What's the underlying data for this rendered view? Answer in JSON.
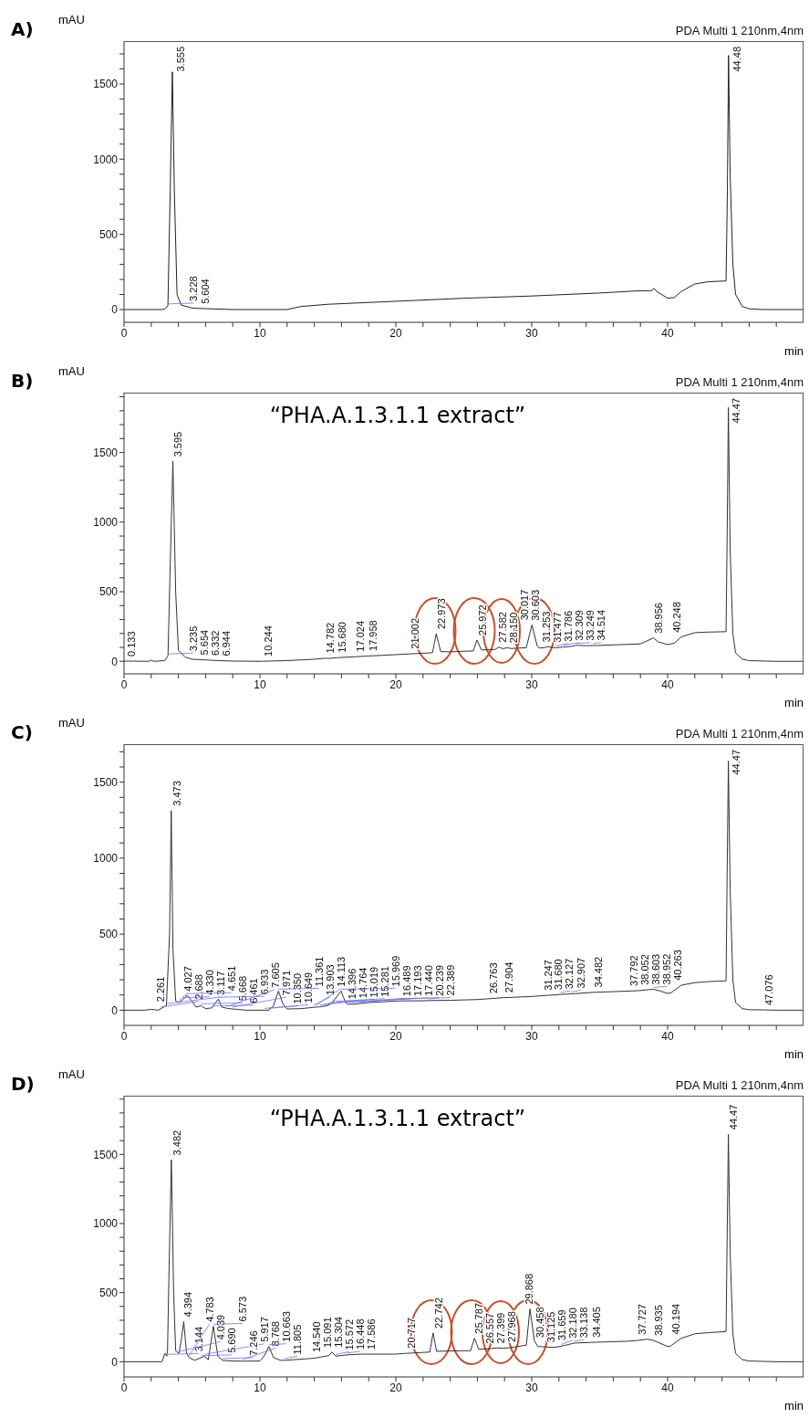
{
  "chart_data": [
    {
      "type": "line",
      "title": "A)",
      "xlabel": "min",
      "ylabel": "mAU",
      "xlim": [
        0,
        50
      ],
      "ylim": [
        -85,
        1785
      ],
      "xticks": [
        0,
        {
          "value": 2,
          "label": null
        },
        {
          "value": 4,
          "label": null
        },
        {
          "value": 6,
          "label": null
        },
        {
          "value": 8,
          "label": null
        },
        10,
        {
          "value": 12,
          "label": null
        },
        {
          "value": 14,
          "label": null
        },
        {
          "value": 16,
          "label": null
        },
        {
          "value": 18,
          "label": null
        },
        20,
        {
          "value": 22,
          "label": null
        },
        {
          "value": 24,
          "label": null
        },
        {
          "value": 26,
          "label": null
        },
        {
          "value": 28,
          "label": null
        },
        30,
        {
          "value": 32,
          "label": null
        },
        {
          "value": 34,
          "label": null
        },
        {
          "value": 36,
          "label": null
        },
        {
          "value": 38,
          "label": null
        },
        40,
        {
          "value": 42,
          "label": null
        },
        {
          "value": 44,
          "label": null
        },
        {
          "value": 46,
          "label": null
        },
        {
          "value": 48,
          "label": null
        }
      ],
      "yticks": [
        0,
        {
          "value": 100,
          "label": null
        },
        {
          "value": 200,
          "label": null
        },
        {
          "value": 300,
          "label": null
        },
        {
          "value": 400,
          "label": null
        },
        500,
        {
          "value": 600,
          "label": null
        },
        {
          "value": 700,
          "label": null
        },
        {
          "value": 800,
          "label": null
        },
        {
          "value": 900,
          "label": null
        },
        1000,
        {
          "value": 1100,
          "label": null
        },
        {
          "value": 1200,
          "label": null
        },
        {
          "value": 1300,
          "label": null
        },
        {
          "value": 1400,
          "label": null
        },
        1500,
        {
          "value": 1600,
          "label": null
        },
        {
          "value": 1700,
          "label": null
        }
      ],
      "x": [
        0,
        2.8,
        3.0,
        3.228,
        3.4,
        3.555,
        3.7,
        3.9,
        4.2,
        5,
        5.604,
        8,
        12,
        13,
        15,
        20,
        25,
        30,
        35,
        38,
        38.8,
        39,
        39.2,
        40,
        40.5,
        41,
        42,
        43,
        44.3,
        44.4,
        44.48,
        44.6,
        44.8,
        45,
        45.5,
        46,
        47,
        50
      ],
      "series": [
        {
          "color": "#222222",
          "values": [
            0,
            0,
            5,
            25,
            800,
            1580,
            800,
            100,
            30,
            10,
            7,
            0,
            0,
            20,
            35,
            55,
            75,
            90,
            110,
            125,
            125,
            140,
            120,
            75,
            80,
            120,
            170,
            185,
            190,
            800,
            1690,
            900,
            300,
            100,
            20,
            5,
            0,
            0
          ]
        }
      ],
      "annotations": [
        "PDA Multi 1 210nm,4nm",
        {
          "text": "3.228",
          "x": 3.228,
          "y": 25
        },
        {
          "text": "3.555",
          "x": 3.555,
          "y": 1580
        },
        {
          "text": "5.604",
          "x": 5.604,
          "y": 7
        },
        {
          "text": "44.48",
          "x": 44.48,
          "y": 1690
        }
      ]
    },
    {
      "type": "line",
      "title": "B)",
      "subtitle": "“PHA.A.1.3.1.1 extract”",
      "xlabel": "min",
      "ylabel": "mAU",
      "xlim": [
        0,
        50
      ],
      "ylim": [
        -90,
        1930
      ],
      "xticks": [
        0,
        {
          "value": 2,
          "label": null
        },
        {
          "value": 4,
          "label": null
        },
        {
          "value": 6,
          "label": null
        },
        {
          "value": 8,
          "label": null
        },
        10,
        {
          "value": 12,
          "label": null
        },
        {
          "value": 14,
          "label": null
        },
        {
          "value": 16,
          "label": null
        },
        {
          "value": 18,
          "label": null
        },
        20,
        {
          "value": 22,
          "label": null
        },
        {
          "value": 24,
          "label": null
        },
        {
          "value": 26,
          "label": null
        },
        {
          "value": 28,
          "label": null
        },
        30,
        {
          "value": 32,
          "label": null
        },
        {
          "value": 34,
          "label": null
        },
        {
          "value": 36,
          "label": null
        },
        {
          "value": 38,
          "label": null
        },
        40,
        {
          "value": 42,
          "label": null
        },
        {
          "value": 44,
          "label": null
        },
        {
          "value": 46,
          "label": null
        },
        {
          "value": 48,
          "label": null
        }
      ],
      "yticks": [
        0,
        {
          "value": 100,
          "label": null
        },
        {
          "value": 200,
          "label": null
        },
        {
          "value": 300,
          "label": null
        },
        {
          "value": 400,
          "label": null
        },
        500,
        {
          "value": 600,
          "label": null
        },
        {
          "value": 700,
          "label": null
        },
        {
          "value": 800,
          "label": null
        },
        {
          "value": 900,
          "label": null
        },
        1000,
        {
          "value": 1100,
          "label": null
        },
        {
          "value": 1200,
          "label": null
        },
        {
          "value": 1300,
          "label": null
        },
        {
          "value": 1400,
          "label": null
        },
        1500,
        {
          "value": 1600,
          "label": null
        },
        {
          "value": 1700,
          "label": null
        },
        {
          "value": 1800,
          "label": null
        },
        {
          "value": 1900,
          "label": null
        }
      ],
      "x": [
        0,
        0.133,
        1.8,
        2.0,
        2.2,
        3.0,
        3.235,
        3.4,
        3.595,
        3.8,
        4.0,
        4.5,
        5,
        5.654,
        6.332,
        6.944,
        8,
        10,
        10.244,
        12,
        14,
        14.782,
        15,
        15.68,
        17.024,
        17.958,
        20,
        21.002,
        22,
        22.7,
        22.973,
        23.3,
        24,
        25.7,
        25.972,
        26.3,
        27.3,
        27.582,
        27.9,
        28.15,
        28.5,
        29.6,
        30.017,
        30.4,
        30.603,
        31,
        31.253,
        31.477,
        31.786,
        32.309,
        33,
        33.249,
        34,
        34.514,
        36,
        38,
        38.956,
        39.3,
        40,
        40.248,
        40.5,
        41,
        42,
        43,
        44.3,
        44.38,
        44.47,
        44.6,
        44.8,
        45,
        45.5,
        46,
        48,
        50
      ],
      "series": [
        {
          "color": "#333333",
          "values": [
            0,
            2,
            0,
            8,
            0,
            5,
            40,
            700,
            1436,
            500,
            80,
            30,
            15,
            12,
            8,
            5,
            2,
            0,
            1,
            5,
            15,
            22,
            20,
            26,
            33,
            38,
            48,
            53,
            58,
            62,
            198,
            70,
            68,
            75,
            153,
            82,
            85,
            102,
            90,
            98,
            92,
            98,
            262,
            110,
            95,
            100,
            105,
            100,
            98,
            102,
            108,
            115,
            112,
            113,
            118,
            125,
            168,
            140,
            120,
            125,
            130,
            175,
            206,
            210,
            213,
            900,
            1822,
            800,
            200,
            60,
            15,
            5,
            0,
            0
          ]
        }
      ],
      "annotations": [
        "PDA Multi 1 210nm,4nm",
        {
          "text": "0.133",
          "x": 0.133,
          "y": 2
        },
        {
          "text": "3.235",
          "x": 3.235,
          "y": 40
        },
        {
          "text": "3.595",
          "x": 3.595,
          "y": 1436
        },
        {
          "text": "5.654",
          "x": 5.654,
          "y": 12
        },
        {
          "text": "6.332",
          "x": 6.332,
          "y": 8
        },
        {
          "text": "6.944",
          "x": 6.944,
          "y": 5
        },
        {
          "text": "10.244",
          "x": 10.244,
          "y": 1
        },
        {
          "text": "14.782",
          "x": 14.782,
          "y": 22
        },
        {
          "text": "15.680",
          "x": 15.68,
          "y": 26
        },
        {
          "text": "17.024",
          "x": 17.024,
          "y": 33
        },
        {
          "text": "17.958",
          "x": 17.958,
          "y": 38
        },
        {
          "text": "21.002",
          "x": 21.002,
          "y": 53
        },
        {
          "text": "22.973",
          "x": 22.973,
          "y": 198
        },
        {
          "text": "25.972",
          "x": 25.972,
          "y": 153
        },
        {
          "text": "27.582",
          "x": 27.582,
          "y": 102
        },
        {
          "text": "28.150",
          "x": 28.15,
          "y": 98
        },
        {
          "text": "30.017",
          "x": 30.017,
          "y": 262
        },
        {
          "text": "30.603",
          "x": 30.603,
          "y": 95
        },
        {
          "text": "31.253",
          "x": 31.253,
          "y": 105
        },
        {
          "text": "31.477",
          "x": 31.477,
          "y": 100
        },
        {
          "text": "31.786",
          "x": 31.786,
          "y": 98
        },
        {
          "text": "32.309",
          "x": 32.309,
          "y": 102
        },
        {
          "text": "33.249",
          "x": 33.249,
          "y": 115
        },
        {
          "text": "34.514",
          "x": 34.514,
          "y": 113
        },
        {
          "text": "38.956",
          "x": 38.956,
          "y": 168
        },
        {
          "text": "40.248",
          "x": 40.248,
          "y": 125
        },
        {
          "text": "44.47",
          "x": 44.47,
          "y": 1822
        }
      ]
    },
    {
      "type": "line",
      "title": "C)",
      "xlabel": "min",
      "ylabel": "mAU",
      "xlim": [
        0,
        50
      ],
      "ylim": [
        -100,
        1750
      ],
      "xticks": [
        0,
        {
          "value": 2,
          "label": null
        },
        {
          "value": 4,
          "label": null
        },
        {
          "value": 6,
          "label": null
        },
        {
          "value": 8,
          "label": null
        },
        10,
        {
          "value": 12,
          "label": null
        },
        {
          "value": 14,
          "label": null
        },
        {
          "value": 16,
          "label": null
        },
        {
          "value": 18,
          "label": null
        },
        20,
        {
          "value": 22,
          "label": null
        },
        {
          "value": 24,
          "label": null
        },
        {
          "value": 26,
          "label": null
        },
        {
          "value": 28,
          "label": null
        },
        30,
        {
          "value": 32,
          "label": null
        },
        {
          "value": 34,
          "label": null
        },
        {
          "value": 36,
          "label": null
        },
        {
          "value": 38,
          "label": null
        },
        40,
        {
          "value": 42,
          "label": null
        },
        {
          "value": 44,
          "label": null
        },
        {
          "value": 46,
          "label": null
        },
        {
          "value": 48,
          "label": null
        }
      ],
      "yticks": [
        0,
        {
          "value": 100,
          "label": null
        },
        {
          "value": 200,
          "label": null
        },
        {
          "value": 300,
          "label": null
        },
        {
          "value": 400,
          "label": null
        },
        500,
        {
          "value": 600,
          "label": null
        },
        {
          "value": 700,
          "label": null
        },
        {
          "value": 800,
          "label": null
        },
        {
          "value": 900,
          "label": null
        },
        1000,
        {
          "value": 1100,
          "label": null
        },
        {
          "value": 1200,
          "label": null
        },
        {
          "value": 1300,
          "label": null
        },
        {
          "value": 1400,
          "label": null
        },
        1500,
        {
          "value": 1600,
          "label": null
        },
        {
          "value": 1700,
          "label": null
        }
      ],
      "x": [
        0,
        1.5,
        2.0,
        2.261,
        2.5,
        2.688,
        3.0,
        3.117,
        3.35,
        3.473,
        3.6,
        3.8,
        4.027,
        4.33,
        4.651,
        5.0,
        5.3,
        5.668,
        6.0,
        6.461,
        6.933,
        7.2,
        7.605,
        7.971,
        9,
        10,
        10.35,
        10.649,
        11.0,
        11.361,
        11.7,
        12,
        13,
        13.903,
        14.113,
        14.396,
        14.764,
        15.019,
        15.281,
        15.5,
        15.969,
        16.3,
        16.489,
        17.193,
        17.44,
        18,
        20,
        20.239,
        22,
        22.389,
        24,
        26,
        26.763,
        27.904,
        30,
        31.247,
        31.68,
        32.127,
        32.907,
        34.482,
        36,
        37.792,
        38.052,
        38.603,
        38.952,
        39.5,
        40,
        40.263,
        41,
        42,
        43,
        44.3,
        44.38,
        44.47,
        44.6,
        44.8,
        45,
        45.5,
        46,
        47.076,
        48,
        50
      ],
      "series": [
        {
          "color": "#333333",
          "values": [
            0,
            0,
            5,
            3,
            0,
            8,
            25,
            30,
            500,
            1313,
            400,
            60,
            50,
            70,
            97,
            60,
            20,
            30,
            10,
            15,
            73,
            20,
            12,
            8,
            0,
            0,
            0,
            0,
            30,
            126,
            40,
            8,
            10,
            18,
            20,
            22,
            27,
            32,
            45,
            70,
            126,
            50,
            38,
            42,
            45,
            50,
            60,
            61,
            62,
            63,
            65,
            70,
            75,
            82,
            90,
            98,
            100,
            104,
            107,
            117,
            122,
            128,
            130,
            135,
            138,
            125,
            110,
            115,
            164,
            181,
            188,
            193,
            900,
            1638,
            800,
            200,
            50,
            10,
            3,
            2,
            0,
            0
          ]
        }
      ],
      "annotations": [
        "PDA Multi 1 210nm,4nm",
        {
          "text": "2.261",
          "x": 2.261,
          "y": 3
        },
        {
          "text": "2.688",
          "x": 2.688,
          "y": 8
        },
        {
          "text": "3.117",
          "x": 3.117,
          "y": 30
        },
        {
          "text": "3.473",
          "x": 3.473,
          "y": 1313
        },
        {
          "text": "4.027",
          "x": 4.027,
          "y": 50
        },
        {
          "text": "4.330",
          "x": 4.33,
          "y": 70
        },
        {
          "text": "4.651",
          "x": 4.651,
          "y": 97
        },
        {
          "text": "5.668",
          "x": 5.668,
          "y": 30
        },
        {
          "text": "6.461",
          "x": 6.461,
          "y": 15
        },
        {
          "text": "6.933",
          "x": 6.933,
          "y": 73
        },
        {
          "text": "7.605",
          "x": 7.605,
          "y": 12
        },
        {
          "text": "7.971",
          "x": 7.971,
          "y": 8
        },
        {
          "text": "10.350",
          "x": 10.35,
          "y": 0
        },
        {
          "text": "10.649",
          "x": 10.649,
          "y": 0
        },
        {
          "text": "11.361",
          "x": 11.361,
          "y": 126
        },
        {
          "text": "13.903",
          "x": 13.903,
          "y": 18
        },
        {
          "text": "14.113",
          "x": 14.113,
          "y": 20
        },
        {
          "text": "14.396",
          "x": 14.396,
          "y": 22
        },
        {
          "text": "14.764",
          "x": 14.764,
          "y": 27
        },
        {
          "text": "15.019",
          "x": 15.019,
          "y": 32
        },
        {
          "text": "15.281",
          "x": 15.281,
          "y": 45
        },
        {
          "text": "15.969",
          "x": 15.969,
          "y": 126
        },
        {
          "text": "16.489",
          "x": 16.489,
          "y": 38
        },
        {
          "text": "17.193",
          "x": 17.193,
          "y": 42
        },
        {
          "text": "17.440",
          "x": 17.44,
          "y": 45
        },
        {
          "text": "20.239",
          "x": 20.239,
          "y": 61
        },
        {
          "text": "22.389",
          "x": 22.389,
          "y": 63
        },
        {
          "text": "26.763",
          "x": 26.763,
          "y": 75
        },
        {
          "text": "27.904",
          "x": 27.904,
          "y": 82
        },
        {
          "text": "31.247",
          "x": 31.247,
          "y": 98
        },
        {
          "text": "31.680",
          "x": 31.68,
          "y": 100
        },
        {
          "text": "32.127",
          "x": 32.127,
          "y": 104
        },
        {
          "text": "32.907",
          "x": 32.907,
          "y": 107
        },
        {
          "text": "34.482",
          "x": 34.482,
          "y": 117
        },
        {
          "text": "37.792",
          "x": 37.792,
          "y": 128
        },
        {
          "text": "38.052",
          "x": 38.052,
          "y": 130
        },
        {
          "text": "38.603",
          "x": 38.603,
          "y": 135
        },
        {
          "text": "38.952",
          "x": 38.952,
          "y": 138
        },
        {
          "text": "40.263",
          "x": 40.263,
          "y": 115
        },
        {
          "text": "44.47",
          "x": 44.47,
          "y": 1638
        },
        {
          "text": "47.076",
          "x": 47.076,
          "y": 2
        }
      ]
    },
    {
      "type": "line",
      "title": "D)",
      "subtitle": "“PHA.A.1.3.1.1 extract”",
      "xlabel": "min",
      "ylabel": "mAU",
      "xlim": [
        0,
        50
      ],
      "ylim": [
        -110,
        1925
      ],
      "xticks": [
        0,
        {
          "value": 2,
          "label": null
        },
        {
          "value": 4,
          "label": null
        },
        {
          "value": 6,
          "label": null
        },
        {
          "value": 8,
          "label": null
        },
        10,
        {
          "value": 12,
          "label": null
        },
        {
          "value": 14,
          "label": null
        },
        {
          "value": 16,
          "label": null
        },
        {
          "value": 18,
          "label": null
        },
        20,
        {
          "value": 22,
          "label": null
        },
        {
          "value": 24,
          "label": null
        },
        {
          "value": 26,
          "label": null
        },
        {
          "value": 28,
          "label": null
        },
        30,
        {
          "value": 32,
          "label": null
        },
        {
          "value": 34,
          "label": null
        },
        {
          "value": 36,
          "label": null
        },
        {
          "value": 38,
          "label": null
        },
        40,
        {
          "value": 42,
          "label": null
        },
        {
          "value": 44,
          "label": null
        },
        {
          "value": 46,
          "label": null
        },
        {
          "value": 48,
          "label": null
        }
      ],
      "yticks": [
        0,
        {
          "value": 100,
          "label": null
        },
        {
          "value": 200,
          "label": null
        },
        {
          "value": 300,
          "label": null
        },
        {
          "value": 400,
          "label": null
        },
        500,
        {
          "value": 600,
          "label": null
        },
        {
          "value": 700,
          "label": null
        },
        {
          "value": 800,
          "label": null
        },
        {
          "value": 900,
          "label": null
        },
        1000,
        {
          "value": 1100,
          "label": null
        },
        {
          "value": 1200,
          "label": null
        },
        {
          "value": 1300,
          "label": null
        },
        {
          "value": 1400,
          "label": null
        },
        1500,
        {
          "value": 1600,
          "label": null
        },
        {
          "value": 1700,
          "label": null
        },
        {
          "value": 1800,
          "label": null
        },
        {
          "value": 1900,
          "label": null
        }
      ],
      "x": [
        0,
        2.8,
        3.0,
        3.144,
        3.2,
        3.3,
        3.482,
        3.65,
        3.8,
        4.039,
        4.2,
        4.394,
        4.6,
        4.783,
        5.2,
        5.69,
        5.917,
        6.2,
        6.573,
        6.9,
        7.246,
        8,
        8.768,
        10,
        10.3,
        10.663,
        11,
        11.5,
        11.805,
        14,
        14.54,
        15.091,
        15.304,
        15.572,
        16,
        16.448,
        17.586,
        20,
        20.717,
        22.5,
        22.742,
        23,
        24,
        25.5,
        25.787,
        26.1,
        26.557,
        27,
        27.399,
        27.968,
        28.3,
        29.6,
        29.868,
        30.2,
        30.458,
        31,
        31.125,
        31.659,
        32.18,
        33.138,
        34.405,
        37,
        37.727,
        38.5,
        38.935,
        40,
        40.194,
        41,
        42,
        43,
        44.3,
        44.38,
        44.47,
        44.6,
        44.8,
        45,
        45.5,
        46,
        48,
        50
      ],
      "series": [
        {
          "color": "#333333",
          "values": [
            0,
            0,
            60,
            40,
            80,
            600,
            1460,
            500,
            80,
            60,
            150,
            290,
            60,
            30,
            10,
            30,
            40,
            15,
            257,
            40,
            10,
            5,
            4,
            5,
            40,
            110,
            30,
            10,
            10,
            25,
            35,
            45,
            70,
            40,
            45,
            50,
            55,
            55,
            60,
            70,
            208,
            75,
            78,
            80,
            170,
            90,
            92,
            95,
            100,
            98,
            100,
            120,
            382,
            150,
            110,
            108,
            106,
            104,
            112,
            135,
            140,
            148,
            153,
            163,
            155,
            110,
            112,
            169,
            202,
            210,
            218,
            900,
            1646,
            800,
            200,
            60,
            15,
            5,
            0,
            0
          ]
        }
      ],
      "annotations": [
        "PDA Multi 1 210nm,4nm",
        {
          "text": "3.144",
          "x": 3.144,
          "y": 40
        },
        {
          "text": "3.482",
          "x": 3.482,
          "y": 1460
        },
        {
          "text": "4.039",
          "x": 4.039,
          "y": 60
        },
        {
          "text": "4.394",
          "x": 4.394,
          "y": 290
        },
        {
          "text": "4.783",
          "x": 4.783,
          "y": 30
        },
        {
          "text": "5.690",
          "x": 5.69,
          "y": 30
        },
        {
          "text": "5.917",
          "x": 5.917,
          "y": 40
        },
        {
          "text": "6.573",
          "x": 6.573,
          "y": 257
        },
        {
          "text": "7.246",
          "x": 7.246,
          "y": 10
        },
        {
          "text": "8.768",
          "x": 8.768,
          "y": 4
        },
        {
          "text": "10.663",
          "x": 10.663,
          "y": 110
        },
        {
          "text": "11.805",
          "x": 11.805,
          "y": 10
        },
        {
          "text": "14.540",
          "x": 14.54,
          "y": 35
        },
        {
          "text": "15.091",
          "x": 15.091,
          "y": 45
        },
        {
          "text": "15.304",
          "x": 15.304,
          "y": 70
        },
        {
          "text": "15.572",
          "x": 15.572,
          "y": 40
        },
        {
          "text": "16.448",
          "x": 16.448,
          "y": 50
        },
        {
          "text": "17.586",
          "x": 17.586,
          "y": 55
        },
        {
          "text": "20.717",
          "x": 20.717,
          "y": 60
        },
        {
          "text": "22.742",
          "x": 22.742,
          "y": 208
        },
        {
          "text": "25.787",
          "x": 25.787,
          "y": 170
        },
        {
          "text": "26.557",
          "x": 26.557,
          "y": 92
        },
        {
          "text": "27.399",
          "x": 27.399,
          "y": 100
        },
        {
          "text": "27.968",
          "x": 27.968,
          "y": 98
        },
        {
          "text": "29.868",
          "x": 29.868,
          "y": 382
        },
        {
          "text": "30.458",
          "x": 30.458,
          "y": 110
        },
        {
          "text": "31.125",
          "x": 31.125,
          "y": 106
        },
        {
          "text": "31.659",
          "x": 31.659,
          "y": 104
        },
        {
          "text": "32.180",
          "x": 32.18,
          "y": 112
        },
        {
          "text": "33.138",
          "x": 33.138,
          "y": 135
        },
        {
          "text": "34.405",
          "x": 34.405,
          "y": 140
        },
        {
          "text": "37.727",
          "x": 37.727,
          "y": 153
        },
        {
          "text": "38.935",
          "x": 38.935,
          "y": 155
        },
        {
          "text": "40.194",
          "x": 40.194,
          "y": 112
        },
        {
          "text": "44.47",
          "x": 44.47,
          "y": 1646
        }
      ]
    }
  ]
}
